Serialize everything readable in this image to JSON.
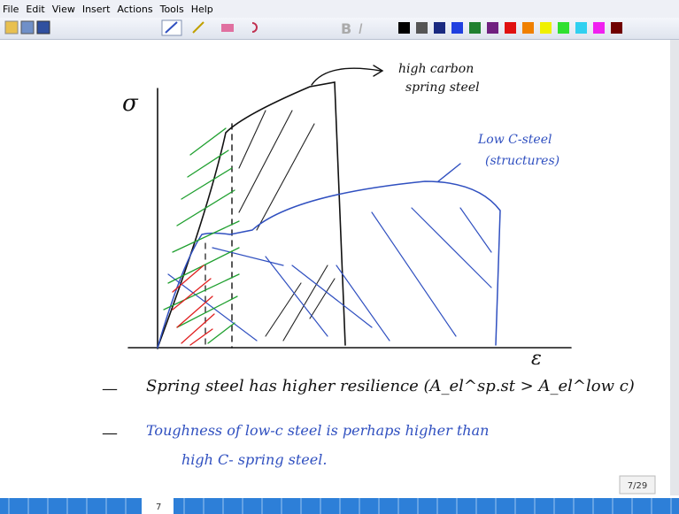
{
  "menu": [
    "File",
    "Edit",
    "View",
    "Insert",
    "Actions",
    "Tools",
    "Help"
  ],
  "note": {
    "axis_y_label": "σ",
    "axis_x_label": "ε",
    "high_carbon_label": [
      "high carbon",
      "spring steel"
    ],
    "low_c_label": [
      "Low C-steel",
      "(structures)"
    ],
    "bullets": [
      {
        "marker": "—",
        "lines": [
          "Spring steel has higher resilience (A_el^sp.st > A_el^low c)"
        ]
      },
      {
        "marker": "—",
        "lines": [
          "Toughness of low-c steel is perhaps higher than",
          "high C- spring steel."
        ]
      }
    ]
  },
  "page_indicator": "7/29",
  "page_tab": "7"
}
